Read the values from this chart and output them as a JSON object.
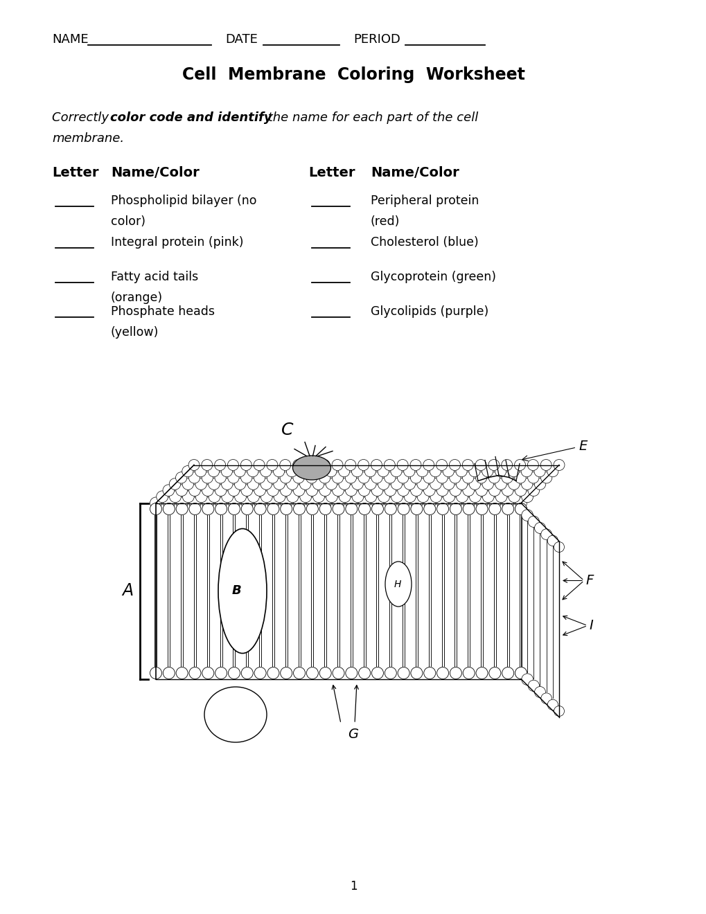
{
  "title": "Cell Membrane Coloring Worksheet",
  "bg_color": "#ffffff",
  "left_items": [
    [
      "Phospholipid bilayer (no",
      "color)"
    ],
    [
      "Integral protein (pink)",
      ""
    ],
    [
      "Fatty acid tails",
      "(orange)"
    ],
    [
      "Phosphate heads",
      "(yellow)"
    ]
  ],
  "right_items": [
    [
      "Peripheral protein",
      "(red)"
    ],
    [
      "Cholesterol (blue)",
      ""
    ],
    [
      "Glycoprotein (green)",
      ""
    ],
    [
      "Glycolipids (purple)",
      ""
    ]
  ],
  "page_number": "1"
}
